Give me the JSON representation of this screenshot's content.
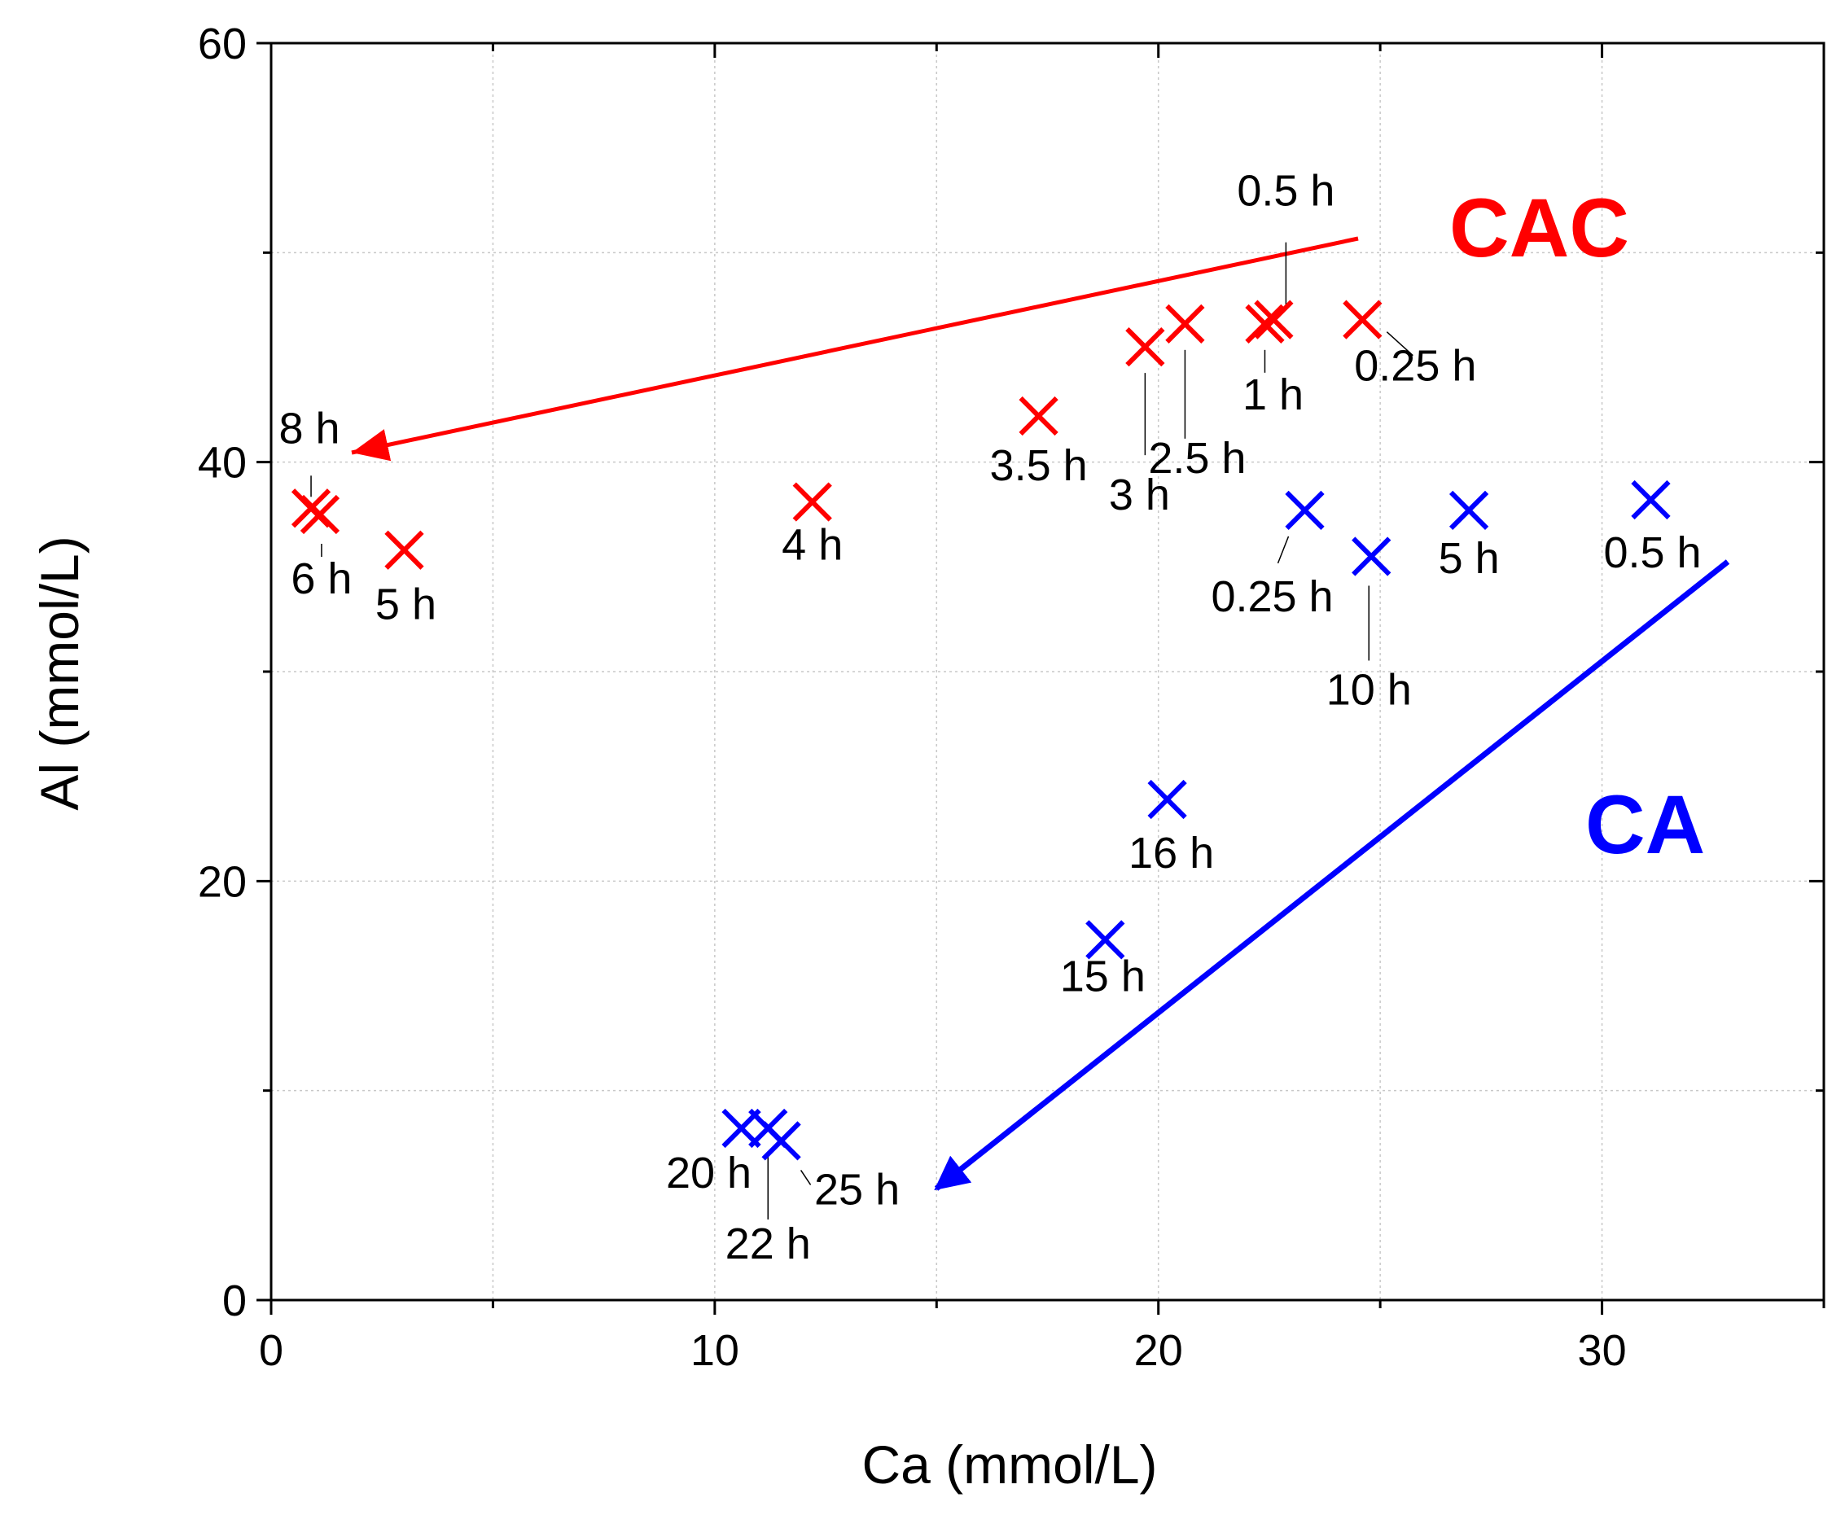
{
  "chart_data": {
    "type": "scatter",
    "title": "",
    "xlabel": "Ca (mmol/L)",
    "ylabel": "Al (mmol/L)",
    "xlim": [
      0,
      35
    ],
    "ylim": [
      0,
      60
    ],
    "x_ticks": [
      0,
      10,
      20,
      30
    ],
    "y_ticks": [
      0,
      20,
      40,
      60
    ],
    "grid": true,
    "series": [
      {
        "name": "CAC",
        "color": "#ff0000",
        "marker": "x",
        "points": [
          {
            "x": 24.6,
            "y": 46.8,
            "label": "0.25 h"
          },
          {
            "x": 22.6,
            "y": 46.8,
            "label": "0.5 h"
          },
          {
            "x": 22.4,
            "y": 46.6,
            "label": "1 h"
          },
          {
            "x": 20.6,
            "y": 46.6,
            "label": "2.5 h"
          },
          {
            "x": 19.7,
            "y": 45.5,
            "label": "3 h"
          },
          {
            "x": 17.3,
            "y": 42.2,
            "label": "3.5 h"
          },
          {
            "x": 12.2,
            "y": 38.1,
            "label": "4 h"
          },
          {
            "x": 3.0,
            "y": 35.8,
            "label": "5 h"
          },
          {
            "x": 1.1,
            "y": 37.5,
            "label": "6 h"
          },
          {
            "x": 0.9,
            "y": 37.8,
            "label": "8 h"
          }
        ]
      },
      {
        "name": "CA",
        "color": "#0000ff",
        "marker": "x",
        "points": [
          {
            "x": 23.3,
            "y": 37.7,
            "label": "0.25 h"
          },
          {
            "x": 31.1,
            "y": 38.2,
            "label": "0.5 h"
          },
          {
            "x": 27.0,
            "y": 37.7,
            "label": "5 h"
          },
          {
            "x": 24.8,
            "y": 35.5,
            "label": "10 h"
          },
          {
            "x": 18.8,
            "y": 17.2,
            "label": "15 h"
          },
          {
            "x": 20.2,
            "y": 23.9,
            "label": "16 h"
          },
          {
            "x": 10.6,
            "y": 8.2,
            "label": "20 h"
          },
          {
            "x": 11.2,
            "y": 8.2,
            "label": "22 h"
          },
          {
            "x": 11.5,
            "y": 7.6,
            "label": "25 h"
          }
        ]
      }
    ],
    "annotations": [
      {
        "text": "CAC",
        "color": "#ff0000"
      },
      {
        "text": "CA",
        "color": "#0000ff"
      }
    ]
  }
}
